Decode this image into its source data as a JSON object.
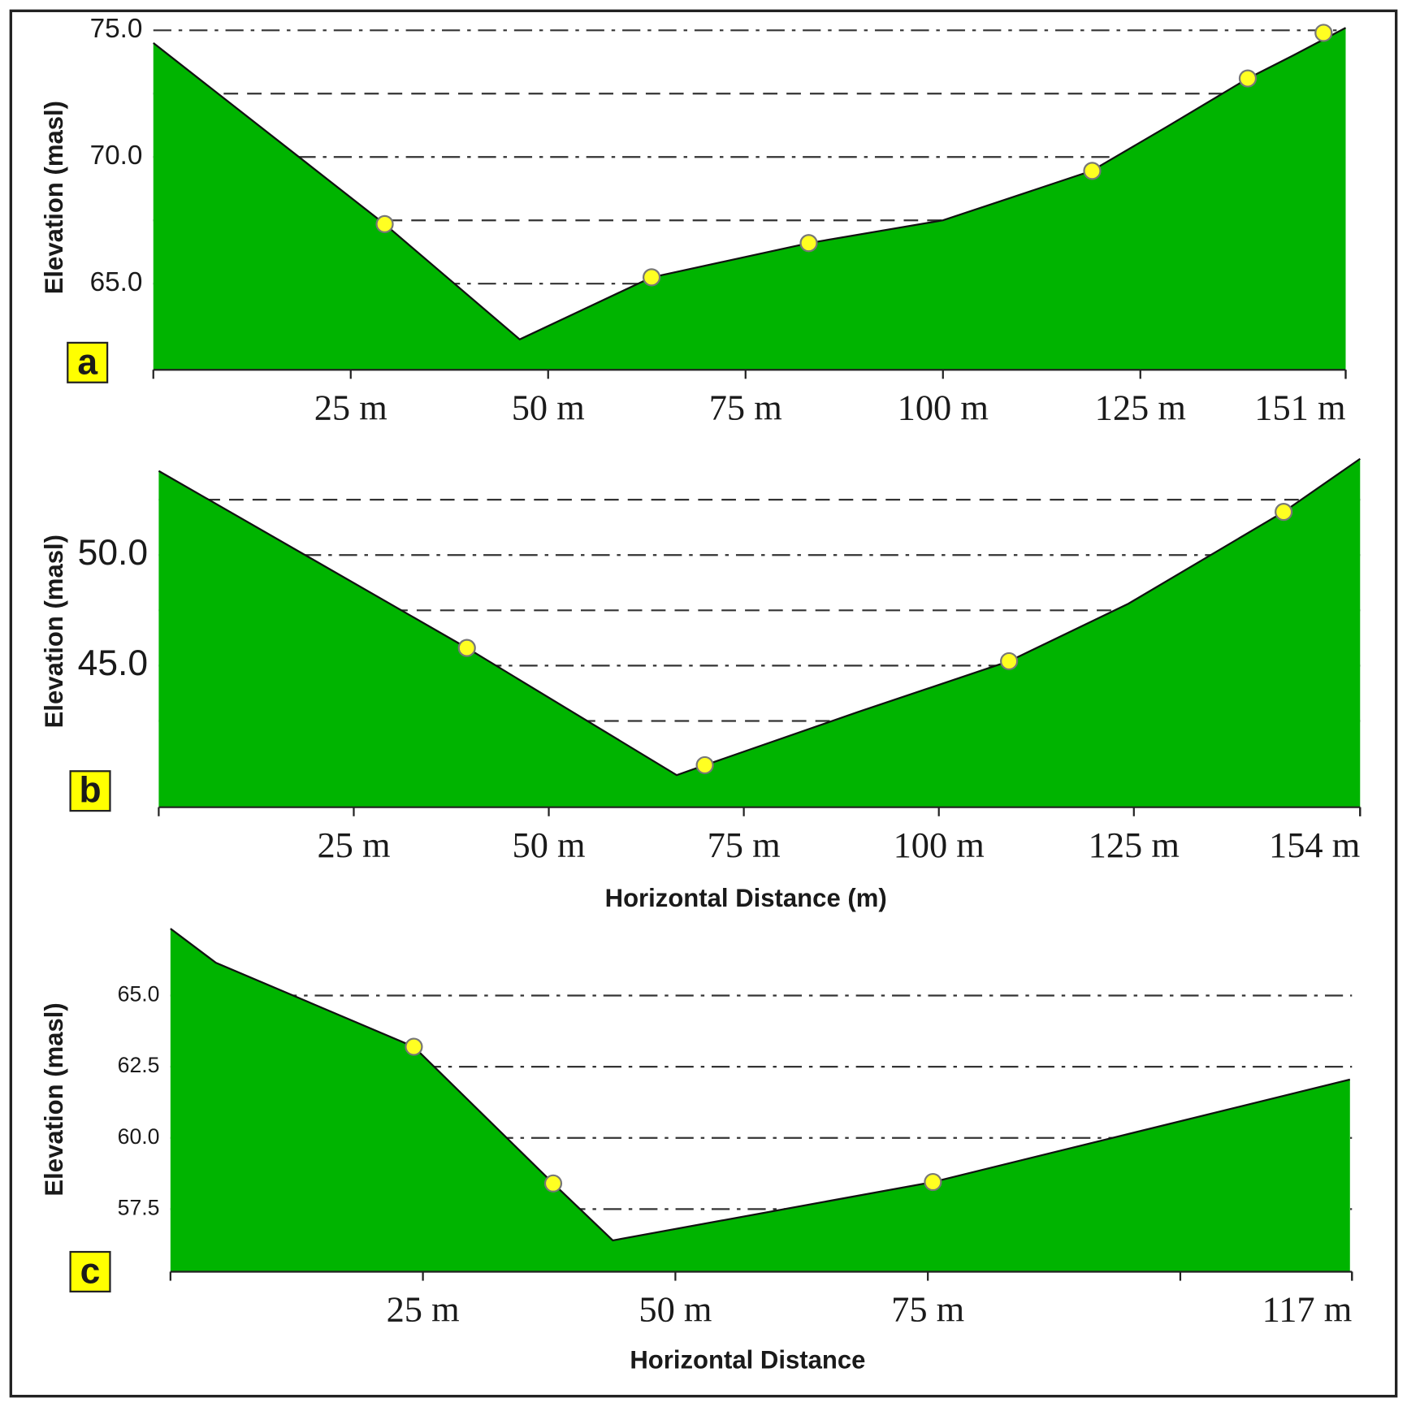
{
  "chart_data": [
    {
      "type": "area",
      "panel_label": "a",
      "y_label": "Elevation (masl)",
      "x": [
        0,
        29.3,
        46.4,
        63.1,
        83,
        100,
        118.8,
        128.4,
        138.6,
        144.3,
        151
      ],
      "values": [
        74.5,
        67.35,
        62.8,
        65.25,
        66.6,
        67.5,
        69.45,
        71.2,
        73.1,
        74.0,
        75.1
      ],
      "markers": {
        "x": [
          29.3,
          63.1,
          83,
          118.9,
          138.6,
          148.2
        ],
        "values": [
          67.35,
          65.25,
          66.6,
          69.45,
          73.1,
          74.9
        ]
      },
      "color": "#00b400",
      "marker_color": "#ffff22",
      "xlim": [
        0,
        151
      ],
      "ylim": [
        61.6,
        75.2
      ],
      "xticks": [
        {
          "value": 25,
          "label": "25 m"
        },
        {
          "value": 50,
          "label": "50 m"
        },
        {
          "value": 75,
          "label": "75 m"
        },
        {
          "value": 100,
          "label": "100 m"
        },
        {
          "value": 125,
          "label": "125 m"
        },
        {
          "value": 151,
          "label": "151 m"
        }
      ],
      "yticks": [
        {
          "value": 65,
          "label": "65.0"
        },
        {
          "value": 70,
          "label": "70.0"
        },
        {
          "value": 75,
          "label": "75.0"
        }
      ],
      "minor_yticks": [
        67.5,
        72.5
      ],
      "grid": true
    },
    {
      "type": "area",
      "panel_label": "b",
      "y_label": "Elevation (masl)",
      "x_label": "Horizontal Distance (m)",
      "x": [
        0,
        39.5,
        66.4,
        70,
        89.6,
        109,
        124.3,
        144.2,
        154
      ],
      "values": [
        53.8,
        45.8,
        40.05,
        40.5,
        42.9,
        45.2,
        47.8,
        51.95,
        54.35
      ],
      "markers": {
        "x": [
          39.5,
          70,
          109,
          144.2
        ],
        "values": [
          45.8,
          40.5,
          45.2,
          51.95
        ]
      },
      "color": "#00b400",
      "marker_color": "#ffff22",
      "xlim": [
        0,
        154
      ],
      "ylim": [
        38.6,
        54.5
      ],
      "xticks": [
        {
          "value": 25,
          "label": "25 m"
        },
        {
          "value": 50,
          "label": "50 m"
        },
        {
          "value": 75,
          "label": "75 m"
        },
        {
          "value": 100,
          "label": "100 m"
        },
        {
          "value": 125,
          "label": "125 m"
        },
        {
          "value": 154,
          "label": "154 m"
        }
      ],
      "yticks": [
        {
          "value": 45,
          "label": "45.0"
        },
        {
          "value": 50,
          "label": "50.0"
        }
      ],
      "minor_yticks": [
        42.5,
        47.5,
        52.5
      ],
      "grid": true
    },
    {
      "type": "area",
      "panel_label": "c",
      "y_label": "Elevation (masl)",
      "x_label": "Horizontal Distance",
      "x": [
        0,
        4.5,
        24.1,
        37.9,
        43.8,
        75.5,
        116.8
      ],
      "values": [
        67.35,
        66.15,
        63.2,
        58.4,
        56.4,
        58.45,
        62.05
      ],
      "markers": {
        "x": [
          24.1,
          37.9,
          75.5
        ],
        "values": [
          63.2,
          58.4,
          58.45
        ]
      },
      "color": "#00b400",
      "marker_color": "#ffff22",
      "xlim": [
        0,
        117
      ],
      "ylim": [
        55.3,
        67.4
      ],
      "xticks": [
        {
          "value": 25,
          "label": "25 m"
        },
        {
          "value": 50,
          "label": "50 m"
        },
        {
          "value": 75,
          "label": "75 m"
        },
        {
          "value": 117,
          "label": "117 m"
        }
      ],
      "minor_xticks": [
        100
      ],
      "yticks": [
        {
          "value": 57.5,
          "label": "57.5"
        },
        {
          "value": 60,
          "label": "60.0"
        },
        {
          "value": 62.5,
          "label": "62.5"
        },
        {
          "value": 65,
          "label": "65.0"
        }
      ],
      "grid": true
    }
  ]
}
